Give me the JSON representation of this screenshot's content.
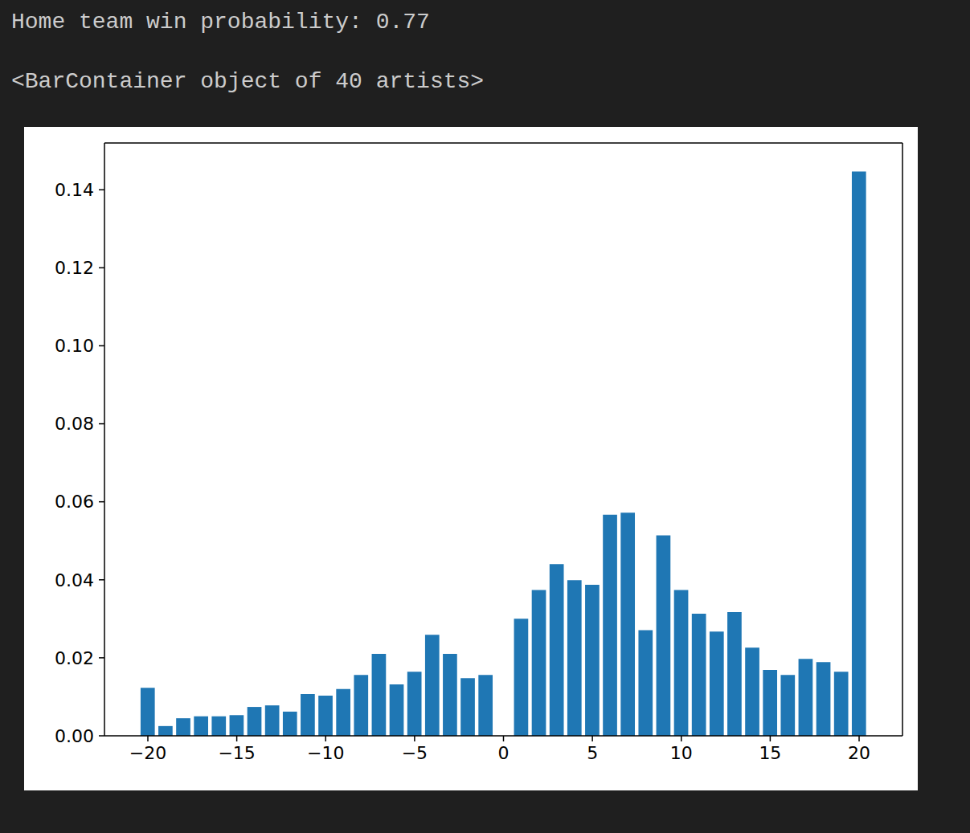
{
  "console": [
    "Home team win probability: 0.77",
    "<BarContainer object of 40 artists>"
  ],
  "chart_data": {
    "type": "bar",
    "x": [
      -20,
      -19,
      -18,
      -17,
      -16,
      -15,
      -14,
      -13,
      -12,
      -11,
      -10,
      -9,
      -8,
      -7,
      -6,
      -5,
      -4,
      -3,
      -2,
      -1,
      1,
      2,
      3,
      4,
      5,
      6,
      7,
      8,
      9,
      10,
      11,
      12,
      13,
      14,
      15,
      16,
      17,
      18,
      19,
      20
    ],
    "values": [
      0.0123,
      0.0025,
      0.0045,
      0.005,
      0.005,
      0.0053,
      0.0074,
      0.0078,
      0.0062,
      0.0107,
      0.0103,
      0.012,
      0.0156,
      0.021,
      0.0132,
      0.0164,
      0.0259,
      0.021,
      0.0148,
      0.0156,
      0.03,
      0.0374,
      0.044,
      0.0399,
      0.0387,
      0.0567,
      0.0572,
      0.0271,
      0.0514,
      0.0374,
      0.0313,
      0.0267,
      0.0317,
      0.0226,
      0.0169,
      0.0156,
      0.0197,
      0.0189,
      0.0164,
      0.1447
    ],
    "color": "#1f77b4",
    "xlim": [
      -22.44,
      22.44
    ],
    "ylim": [
      0,
      0.152
    ],
    "xticks": [
      {
        "value": -20,
        "label": "−20"
      },
      {
        "value": -15,
        "label": "−15"
      },
      {
        "value": -10,
        "label": "−10"
      },
      {
        "value": -5,
        "label": "−5"
      },
      0,
      5,
      10,
      15,
      20
    ],
    "yticks": [
      {
        "value": 0,
        "label": "0.00"
      },
      0.02,
      0.04,
      0.06,
      0.08,
      {
        "value": 0.1,
        "label": "0.10"
      },
      {
        "value": 0.12,
        "label": "0.12"
      },
      {
        "value": 0.14,
        "label": "0.14"
      }
    ],
    "grid": false
  }
}
